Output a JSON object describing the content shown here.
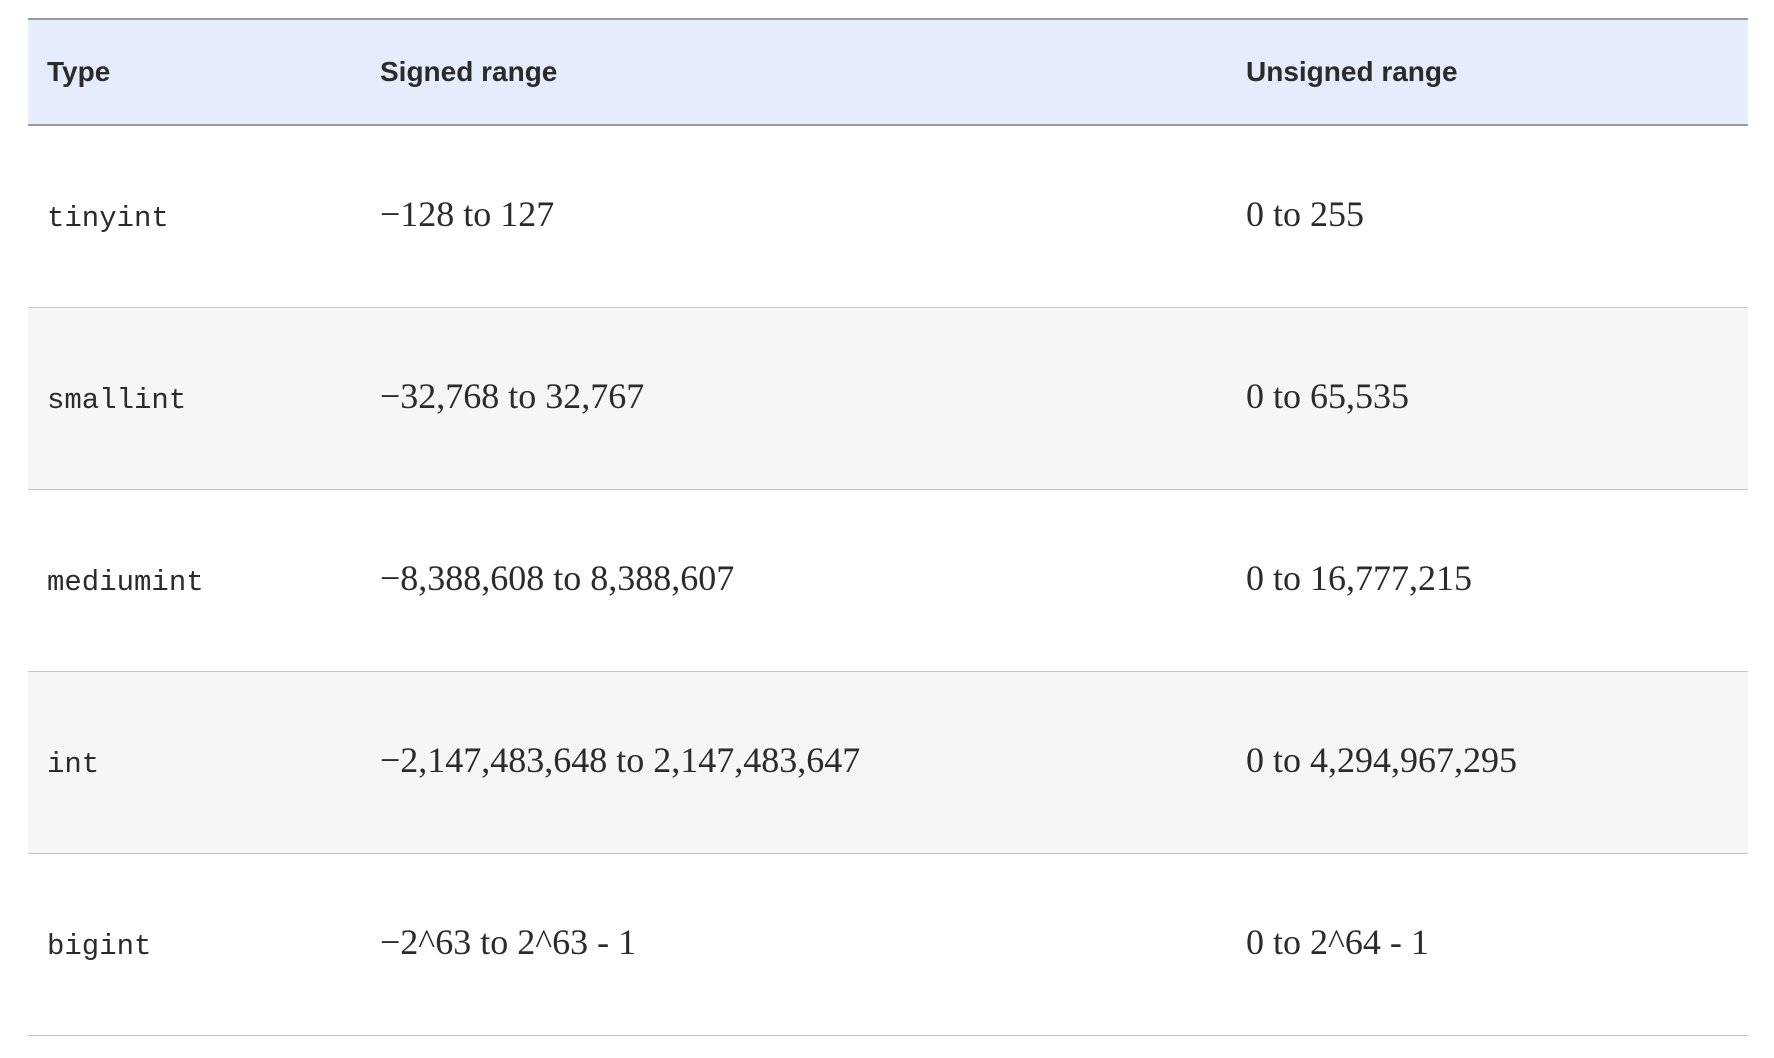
{
  "table": {
    "headers": {
      "type": "Type",
      "signed": "Signed range",
      "unsigned": "Unsigned range"
    },
    "rows": [
      {
        "type": "tinyint",
        "signed": "−128 to 127",
        "unsigned": "0 to 255"
      },
      {
        "type": "smallint",
        "signed": "−32,768 to 32,767",
        "unsigned": "0 to 65,535"
      },
      {
        "type": "mediumint",
        "signed": "−8,388,608 to 8,388,607",
        "unsigned": "0 to 16,777,215"
      },
      {
        "type": "int",
        "signed": "−2,147,483,648 to 2,147,483,647",
        "unsigned": "0 to 4,294,967,295"
      },
      {
        "type": "bigint",
        "signed": "−2^63 to 2^63 - 1",
        "unsigned": "0 to 2^64 - 1"
      }
    ]
  },
  "colors": {
    "header_background": "#e5ecfb",
    "striped_row_background": "#f6f6f6",
    "text": "#2b2b2b"
  }
}
